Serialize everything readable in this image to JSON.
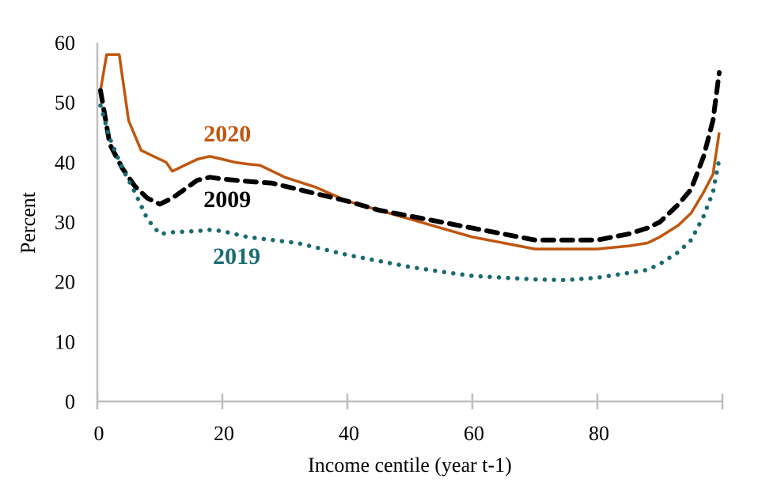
{
  "chart_data": {
    "type": "line",
    "title": "",
    "xlabel": "Income centile (year t-1)",
    "ylabel": "Percent",
    "xlim": [
      0,
      100
    ],
    "ylim": [
      0,
      60
    ],
    "xticks": [
      0,
      20,
      40,
      60,
      80,
      100
    ],
    "xtick_labels": [
      "0",
      "20",
      "40",
      "60",
      "80",
      ""
    ],
    "yticks": [
      0,
      10,
      20,
      30,
      40,
      50,
      60
    ],
    "ytick_labels": [
      "0",
      "10",
      "20",
      "30",
      "40",
      "50",
      "60"
    ],
    "grid": false,
    "legend": "inline labels",
    "series": [
      {
        "name": "2020",
        "color": "#c0560f",
        "style": "solid",
        "label_anchor": [
          17,
          43.5
        ],
        "x": [
          0.5,
          1.5,
          3.5,
          5,
          7,
          9,
          11,
          12,
          14,
          16,
          18,
          20,
          22,
          24,
          26,
          28,
          30,
          35,
          40,
          45,
          50,
          55,
          60,
          65,
          70,
          75,
          80,
          85,
          88,
          90,
          93,
          95,
          97,
          98.5,
          99.5
        ],
        "y": [
          52,
          58,
          58,
          47,
          42,
          41,
          40,
          38.5,
          39.5,
          40.5,
          41,
          40.5,
          40,
          39.7,
          39.5,
          38.5,
          37.5,
          35.8,
          33.5,
          32,
          30.5,
          29,
          27.5,
          26.5,
          25.5,
          25.5,
          25.5,
          26,
          26.5,
          27.5,
          29.5,
          31.5,
          35,
          38,
          45
        ]
      },
      {
        "name": "2009",
        "color": "#000000",
        "style": "dashed",
        "label_anchor": [
          17,
          32.5
        ],
        "x": [
          0.5,
          2,
          4,
          6,
          8,
          10,
          12,
          14,
          16,
          18,
          20,
          24,
          28,
          32,
          36,
          40,
          45,
          50,
          55,
          60,
          65,
          70,
          75,
          80,
          85,
          88,
          90,
          93,
          95,
          97,
          98.5,
          99.5
        ],
        "y": [
          52,
          43,
          39,
          36,
          34,
          33,
          34,
          35.5,
          37,
          37.5,
          37.2,
          36.8,
          36.5,
          35.5,
          34.5,
          33.5,
          32,
          31,
          30,
          29,
          28,
          27,
          27,
          27,
          28,
          29,
          30,
          33,
          35.5,
          41,
          47,
          55
        ]
      },
      {
        "name": "2019",
        "color": "#1a6b70",
        "style": "dotted",
        "label_anchor": [
          18.5,
          23
        ],
        "x": [
          0.5,
          2,
          4,
          6,
          8,
          10,
          12,
          16,
          18,
          20,
          24,
          28,
          32,
          36,
          40,
          45,
          50,
          55,
          60,
          65,
          70,
          75,
          80,
          85,
          88,
          90,
          93,
          95,
          97,
          98.5,
          99.5
        ],
        "y": [
          49.5,
          44,
          39,
          35,
          30.5,
          28,
          28.3,
          28.5,
          28.7,
          28.5,
          27.5,
          27,
          26.5,
          25.5,
          24.5,
          23.5,
          22.5,
          21.7,
          21,
          20.7,
          20.4,
          20.3,
          20.7,
          21.5,
          22,
          23,
          25,
          27,
          31,
          35,
          40.5
        ]
      }
    ]
  }
}
